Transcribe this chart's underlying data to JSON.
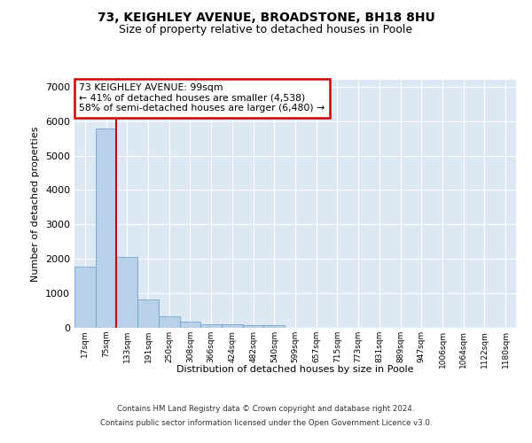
{
  "title": "73, KEIGHLEY AVENUE, BROADSTONE, BH18 8HU",
  "subtitle": "Size of property relative to detached houses in Poole",
  "xlabel": "Distribution of detached houses by size in Poole",
  "ylabel": "Number of detached properties",
  "footer_line1": "Contains HM Land Registry data © Crown copyright and database right 2024.",
  "footer_line2": "Contains public sector information licensed under the Open Government Licence v3.0.",
  "bin_labels": [
    "17sqm",
    "75sqm",
    "133sqm",
    "191sqm",
    "250sqm",
    "308sqm",
    "366sqm",
    "424sqm",
    "482sqm",
    "540sqm",
    "599sqm",
    "657sqm",
    "715sqm",
    "773sqm",
    "831sqm",
    "889sqm",
    "947sqm",
    "1006sqm",
    "1064sqm",
    "1122sqm",
    "1180sqm"
  ],
  "bar_heights": [
    1780,
    5780,
    2060,
    820,
    340,
    190,
    115,
    105,
    90,
    70,
    0,
    0,
    0,
    0,
    0,
    0,
    0,
    0,
    0,
    0,
    0
  ],
  "bar_color": "#b8d0e8",
  "bar_edgecolor": "#6699cc",
  "red_line_x": 1.5,
  "annotation_text": "73 KEIGHLEY AVENUE: 99sqm\n← 41% of detached houses are smaller (4,538)\n58% of semi-detached houses are larger (6,480) →",
  "annotation_box_color": "#ffffff",
  "annotation_border_color": "#cc0000",
  "ylim": [
    0,
    7200
  ],
  "yticks": [
    0,
    1000,
    2000,
    3000,
    4000,
    5000,
    6000,
    7000
  ],
  "plot_bg_color": "#dde8f5",
  "grid_color": "#ffffff",
  "title_fontsize": 10,
  "subtitle_fontsize": 9
}
